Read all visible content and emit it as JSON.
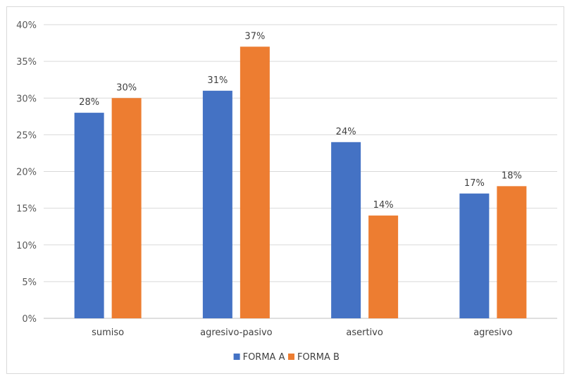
{
  "chart_data": {
    "type": "bar",
    "title": "",
    "xlabel": "",
    "ylabel": "",
    "categories": [
      "sumiso",
      "agresivo-pasivo",
      "asertivo",
      "agresivo"
    ],
    "series": [
      {
        "name": "FORMA A",
        "values": [
          28,
          31,
          24,
          17
        ],
        "labels": [
          "28%",
          "31%",
          "24%",
          "17%"
        ],
        "color": "#4472c4"
      },
      {
        "name": "FORMA B",
        "values": [
          30,
          37,
          14,
          18
        ],
        "labels": [
          "30%",
          "37%",
          "14%",
          "18%"
        ],
        "color": "#ed7d31"
      }
    ],
    "ylim": [
      0,
      40
    ],
    "yticks": [
      "0%",
      "5%",
      "10%",
      "15%",
      "20%",
      "25%",
      "30%",
      "35%",
      "40%"
    ],
    "grid": true,
    "legend_position": "bottom"
  }
}
